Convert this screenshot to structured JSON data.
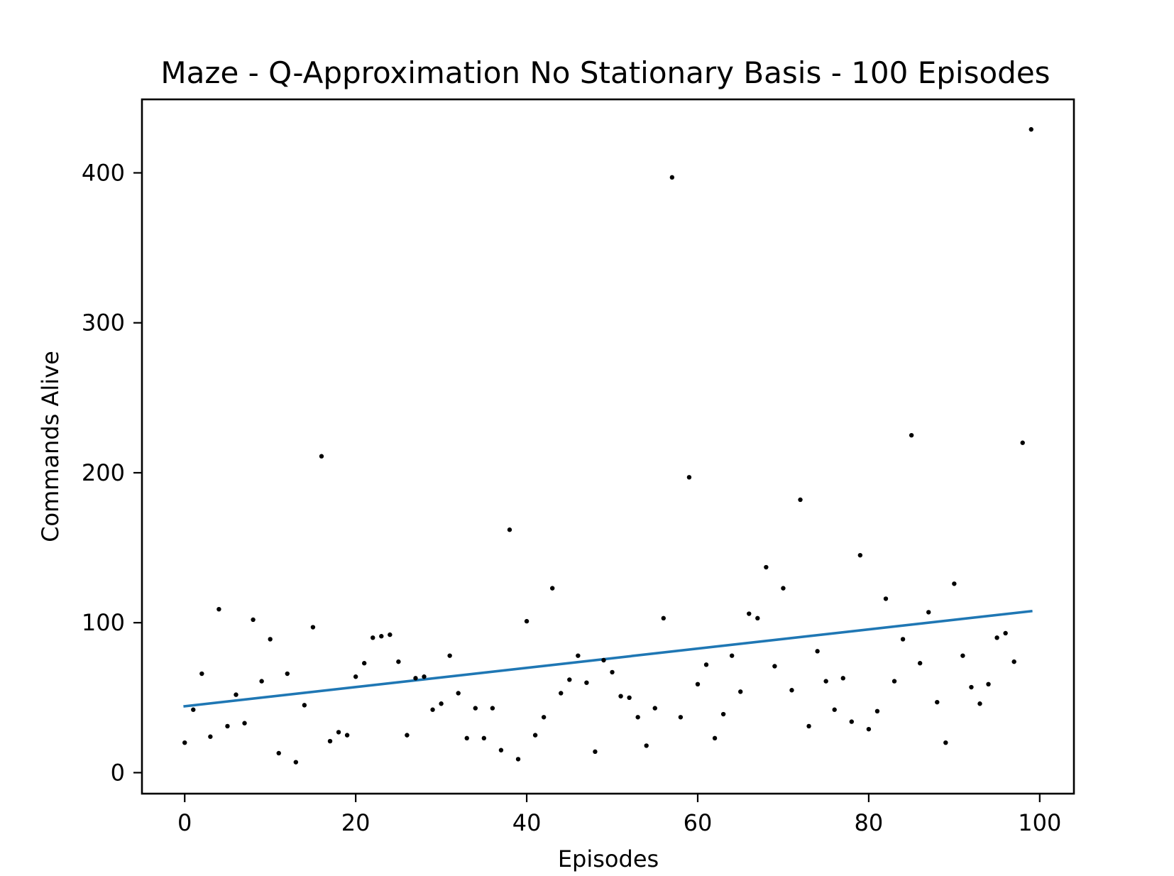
{
  "chart_data": {
    "type": "scatter",
    "title": "Maze - Q-Approximation No Stationary Basis - 100 Episodes",
    "xlabel": "Episodes",
    "ylabel": "Commands Alive",
    "xlim": [
      -5,
      104
    ],
    "ylim": [
      -14,
      449
    ],
    "xticks": [
      0,
      20,
      40,
      60,
      80,
      100
    ],
    "yticks": [
      0,
      100,
      200,
      300,
      400
    ],
    "grid": false,
    "colors": {
      "points": "#000000",
      "trend": "#1f77b4",
      "frame": "#000000"
    },
    "points": {
      "x": [
        0,
        1,
        2,
        3,
        4,
        5,
        6,
        7,
        8,
        9,
        10,
        11,
        12,
        13,
        14,
        15,
        16,
        17,
        18,
        19,
        20,
        21,
        22,
        23,
        24,
        25,
        26,
        27,
        28,
        29,
        30,
        31,
        32,
        33,
        34,
        35,
        36,
        37,
        38,
        39,
        40,
        41,
        42,
        43,
        44,
        45,
        46,
        47,
        48,
        49,
        50,
        51,
        52,
        53,
        54,
        55,
        56,
        57,
        58,
        59,
        60,
        61,
        62,
        63,
        64,
        65,
        66,
        67,
        68,
        69,
        70,
        71,
        72,
        73,
        74,
        75,
        76,
        77,
        78,
        79,
        80,
        81,
        82,
        83,
        84,
        85,
        86,
        87,
        88,
        89,
        90,
        91,
        92,
        93,
        94,
        95,
        96,
        97,
        98,
        99
      ],
      "y": [
        20,
        42,
        66,
        24,
        109,
        31,
        52,
        33,
        102,
        61,
        89,
        13,
        66,
        7,
        45,
        97,
        211,
        21,
        27,
        25,
        64,
        73,
        90,
        91,
        92,
        74,
        25,
        63,
        64,
        42,
        46,
        78,
        53,
        23,
        43,
        23,
        43,
        15,
        162,
        9,
        101,
        25,
        37,
        123,
        53,
        62,
        78,
        60,
        14,
        75,
        67,
        51,
        50,
        37,
        18,
        43,
        103,
        397,
        37,
        197,
        59,
        72,
        23,
        39,
        78,
        54,
        106,
        103,
        137,
        71,
        123,
        55,
        182,
        31,
        81,
        61,
        42,
        63,
        34,
        145,
        29,
        41,
        116,
        61,
        89,
        225,
        73,
        107,
        47,
        20,
        126,
        78,
        57,
        46,
        59,
        90,
        93,
        74,
        220,
        429
      ]
    },
    "trend": {
      "x": [
        0,
        99
      ],
      "y": [
        44.3,
        107.7
      ]
    }
  }
}
